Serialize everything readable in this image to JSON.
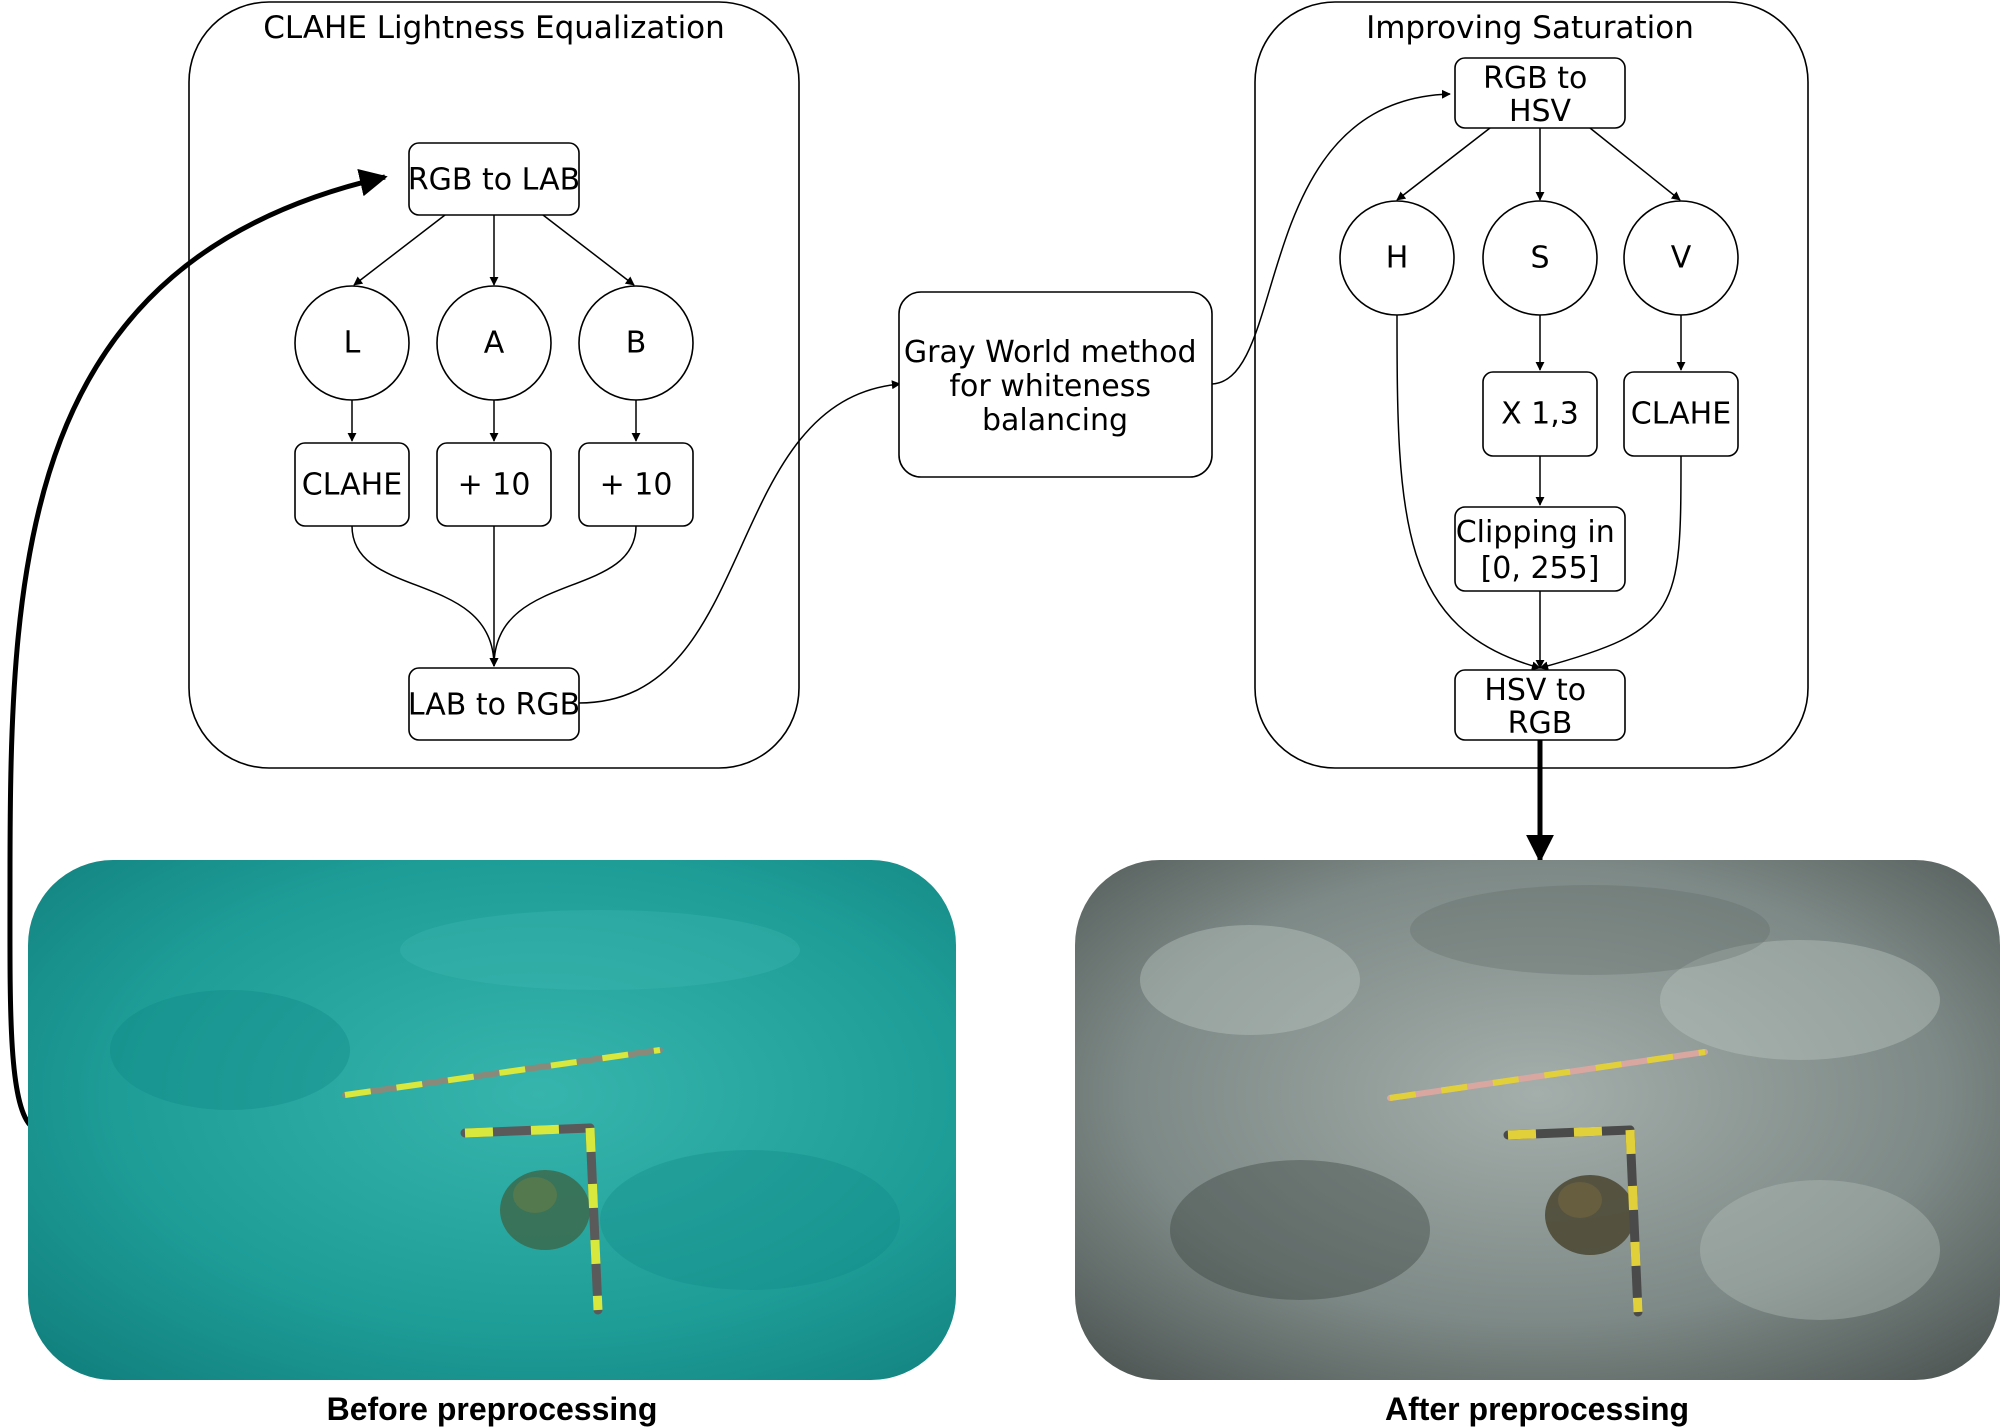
{
  "groups": {
    "clahe": {
      "title": "CLAHE Lightness Equalization"
    },
    "saturation": {
      "title": "Improving Saturation"
    }
  },
  "nodes": {
    "rgb_to_lab": "RGB to LAB",
    "l": "L",
    "a": "A",
    "b": "B",
    "clahe_l": "CLAHE",
    "plus10_a": "+ 10",
    "plus10_b": "+ 10",
    "lab_to_rgb": "LAB to RGB",
    "gray_world": [
      "Gray World method",
      "for whiteness",
      "balancing"
    ],
    "rgb_to_hsv": [
      "RGB to",
      "HSV"
    ],
    "h": "H",
    "s": "S",
    "v": "V",
    "x13": "X 1,3",
    "clahe_v": "CLAHE",
    "clipping": [
      "Clipping in",
      "[0, 255]"
    ],
    "hsv_to_rgb": [
      "HSV to",
      "RGB"
    ]
  },
  "captions": {
    "before": "Before preprocessing",
    "after": "After preprocessing"
  },
  "colors": {
    "before_water": "#1c9c98",
    "after_seabed": "#7f8a87",
    "marker_yellow": "#d8e83c"
  }
}
